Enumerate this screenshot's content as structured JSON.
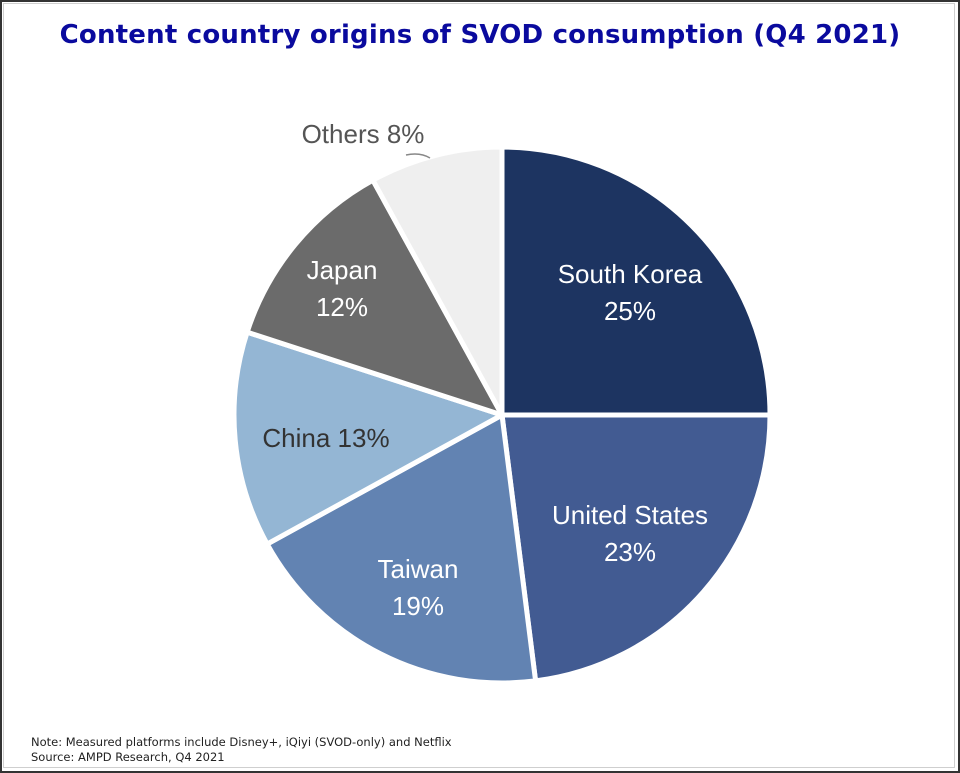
{
  "chart_data": {
    "type": "pie",
    "title": "Content country origins of SVOD consumption (Q4 2021)",
    "slices": [
      {
        "label": "South Korea",
        "value": 25,
        "pct_label": "25%",
        "color": "#1d3461",
        "text_color": "#ffffff"
      },
      {
        "label": "United States",
        "value": 23,
        "pct_label": "23%",
        "color": "#425b92",
        "text_color": "#ffffff"
      },
      {
        "label": "Taiwan",
        "value": 19,
        "pct_label": "19%",
        "color": "#6283b2",
        "text_color": "#ffffff"
      },
      {
        "label": "China",
        "value": 13,
        "pct_label": "13%",
        "color": "#94b6d4",
        "text_color": "#333333"
      },
      {
        "label": "Japan",
        "value": 12,
        "pct_label": "12%",
        "color": "#6b6b6b",
        "text_color": "#ffffff"
      },
      {
        "label": "Others",
        "value": 8,
        "pct_label": "8%",
        "color": "#efefef",
        "text_color": "#555555"
      }
    ],
    "start_angle": "12 o'clock",
    "direction": "clockwise"
  },
  "footer": {
    "note": "Note: Measured platforms include Disney+, iQiyi (SVOD-only) and Netflix",
    "source": "Source: AMPD Research, Q4 2021"
  }
}
